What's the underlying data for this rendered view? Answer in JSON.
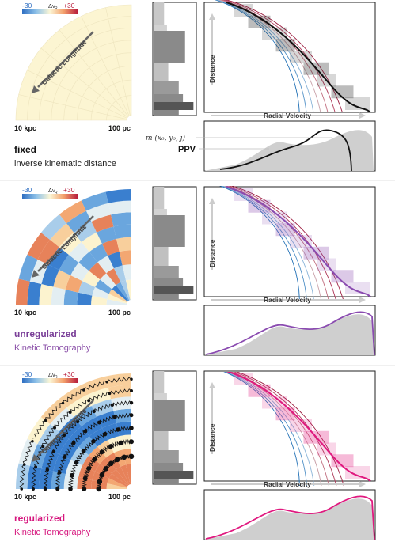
{
  "colorbar": {
    "min_label": "-30",
    "mid_label": "Δv",
    "mid_sub": "R",
    "max_label": "+30",
    "min_color": "#3a7fcf",
    "max_color": "#c4304a"
  },
  "labels": {
    "galactic_longitude": "Galactic Longitude",
    "near_radius": "10 kpc",
    "far_radius": "100 pc",
    "distance": "Distance",
    "radial_velocity": "Radial Velocity",
    "model_expr": "m (x₀, y₀, j)",
    "ppv": "PPV"
  },
  "panels": [
    {
      "id": "fixed",
      "title": "fixed",
      "subtitle": "inverse kinematic distance",
      "title_color": "#111111",
      "subtitle_color": "#222222",
      "curve_color": "#111111",
      "map_mode": "uniform",
      "springs": false
    },
    {
      "id": "unregularized",
      "title": "unregularized",
      "subtitle": "Kinetic Tomography",
      "title_color": "#7a3f98",
      "subtitle_color": "#8a4fa8",
      "curve_color": "#8a4bb0",
      "map_mode": "noisy",
      "springs": false
    },
    {
      "id": "regularized",
      "title": "regularized",
      "subtitle": "Kinetic Tomography",
      "title_color": "#d6177e",
      "subtitle_color": "#d6177e",
      "curve_color": "#e0197f",
      "map_mode": "smooth",
      "springs": true
    }
  ]
}
